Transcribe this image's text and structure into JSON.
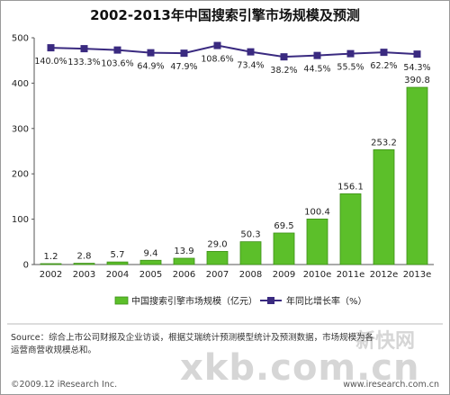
{
  "chart_data": {
    "type": "bar",
    "title": "2002-2013年中国搜索引擎市场规模及预测",
    "categories": [
      "2002",
      "2003",
      "2004",
      "2005",
      "2006",
      "2007",
      "2008",
      "2009",
      "2010e",
      "2011e",
      "2012e",
      "2013e"
    ],
    "series": [
      {
        "name": "中国搜索引擎市场规模（亿元）",
        "type": "bar",
        "values": [
          1.2,
          2.8,
          5.7,
          9.4,
          13.9,
          29.0,
          50.3,
          69.5,
          100.4,
          156.1,
          253.2,
          390.8
        ],
        "labels": [
          "1.2",
          "2.8",
          "5.7",
          "9.4",
          "13.9",
          "29.0",
          "50.3",
          "69.5",
          "100.4",
          "156.1",
          "253.2",
          "390.8"
        ]
      },
      {
        "name": "年同比增长率（%）",
        "type": "line",
        "labels": [
          "140.0%",
          "133.3%",
          "103.6%",
          "64.9%",
          "47.9%",
          "108.6%",
          "73.4%",
          "38.2%",
          "44.5%",
          "55.5%",
          "62.2%",
          "54.3%"
        ],
        "values": [
          140.0,
          133.3,
          103.6,
          64.9,
          47.9,
          108.6,
          73.4,
          38.2,
          44.5,
          55.5,
          62.2,
          54.3
        ],
        "plot_y": [
          478,
          476,
          473,
          467,
          466,
          483,
          469,
          458,
          461,
          465,
          468,
          464
        ]
      }
    ],
    "ylim": [
      0,
      500
    ],
    "yticks": [
      0,
      100,
      200,
      300,
      400,
      500
    ],
    "grid": false,
    "legend_position": "bottom",
    "colors": {
      "bar": "#5cbf2a",
      "bar_dark": "#3d8f17",
      "line": "#3a2a80"
    }
  },
  "source_line1": "Source：综合上市公司财报及企业访谈，根据艾瑞统计预测模型统计及预测数据，市场规模为各",
  "source_line2": "运营商营收规模总和。",
  "footer_left": "©2009.12 iResearch Inc.",
  "footer_right": "www.iresearch.com.cn",
  "watermark_text": "xkb.com.cn",
  "watermark_logo": "新快网"
}
